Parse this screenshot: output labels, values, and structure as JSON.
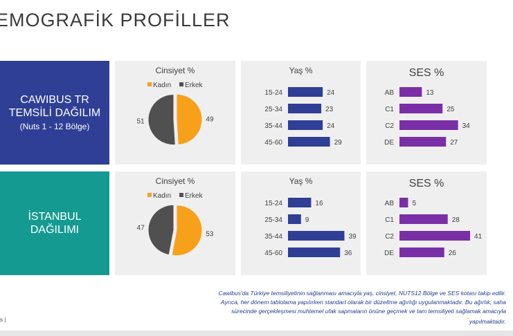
{
  "page": {
    "title": "EMOGRAFİK PROFİLLER",
    "page_ref": "s |",
    "footnote_lines": [
      "Cawibus'da Türkiye temsiliyetinin sağlanması amacıyla  yaş, cinsiyet, NUTS12 Bölge ve SES kotası takip edilir.",
      "Ayrıca, her dönem tablolama yapılırken standart olarak bir düzeltme  ağırlığı uygulanmaktadır. Bu ağırlık, saha",
      "sürecinde gerçekleşmesi muhtemel ufak sapmaların önüne geçmek ve tam temsiliyeti sağlamak amacıyla",
      "yapılmaktadır."
    ],
    "footnote_mark": "**"
  },
  "rows": [
    {
      "label_line1": "CAWIBUS TR",
      "label_line2": "TEMSİLİ DAĞILIM",
      "label_line3": "(Nuts 1 - 12 Bölge)",
      "color": "#2f3f95"
    },
    {
      "label_line1": "İSTANBUL",
      "label_line2": "DAĞILIMI",
      "label_line3": "",
      "color": "#159a91"
    }
  ],
  "chart_data": [
    {
      "type": "pie",
      "title": "Cinsiyet %",
      "categories": [
        "Kadın",
        "Erkek"
      ],
      "values": [
        49,
        51
      ],
      "colors": [
        "#f7a11a",
        "#505050"
      ],
      "legend": "top"
    },
    {
      "type": "bar",
      "orientation": "horizontal",
      "title": "Yaş %",
      "categories": [
        "15-24",
        "25-34",
        "35-44",
        "45-60"
      ],
      "values": [
        24,
        23,
        24,
        29
      ],
      "color": "#2f3f95"
    },
    {
      "type": "bar",
      "orientation": "horizontal",
      "title": "SES %",
      "categories": [
        "AB",
        "C1",
        "C2",
        "DE"
      ],
      "values": [
        13,
        25,
        34,
        27
      ],
      "color": "#7a2fa6"
    },
    {
      "type": "pie",
      "title": "Cinsiyet %",
      "categories": [
        "Kadın",
        "Erkek"
      ],
      "values": [
        53,
        47
      ],
      "colors": [
        "#f7a11a",
        "#505050"
      ],
      "legend": "top"
    },
    {
      "type": "bar",
      "orientation": "horizontal",
      "title": "Yaş %",
      "categories": [
        "15-24",
        "25-34",
        "35-44",
        "45-60"
      ],
      "values": [
        16,
        9,
        39,
        36
      ],
      "color": "#2f3f95"
    },
    {
      "type": "bar",
      "orientation": "horizontal",
      "title": "SES %",
      "categories": [
        "AB",
        "C1",
        "C2",
        "DE"
      ],
      "values": [
        5,
        28,
        41,
        26
      ],
      "color": "#7a2fa6"
    }
  ]
}
